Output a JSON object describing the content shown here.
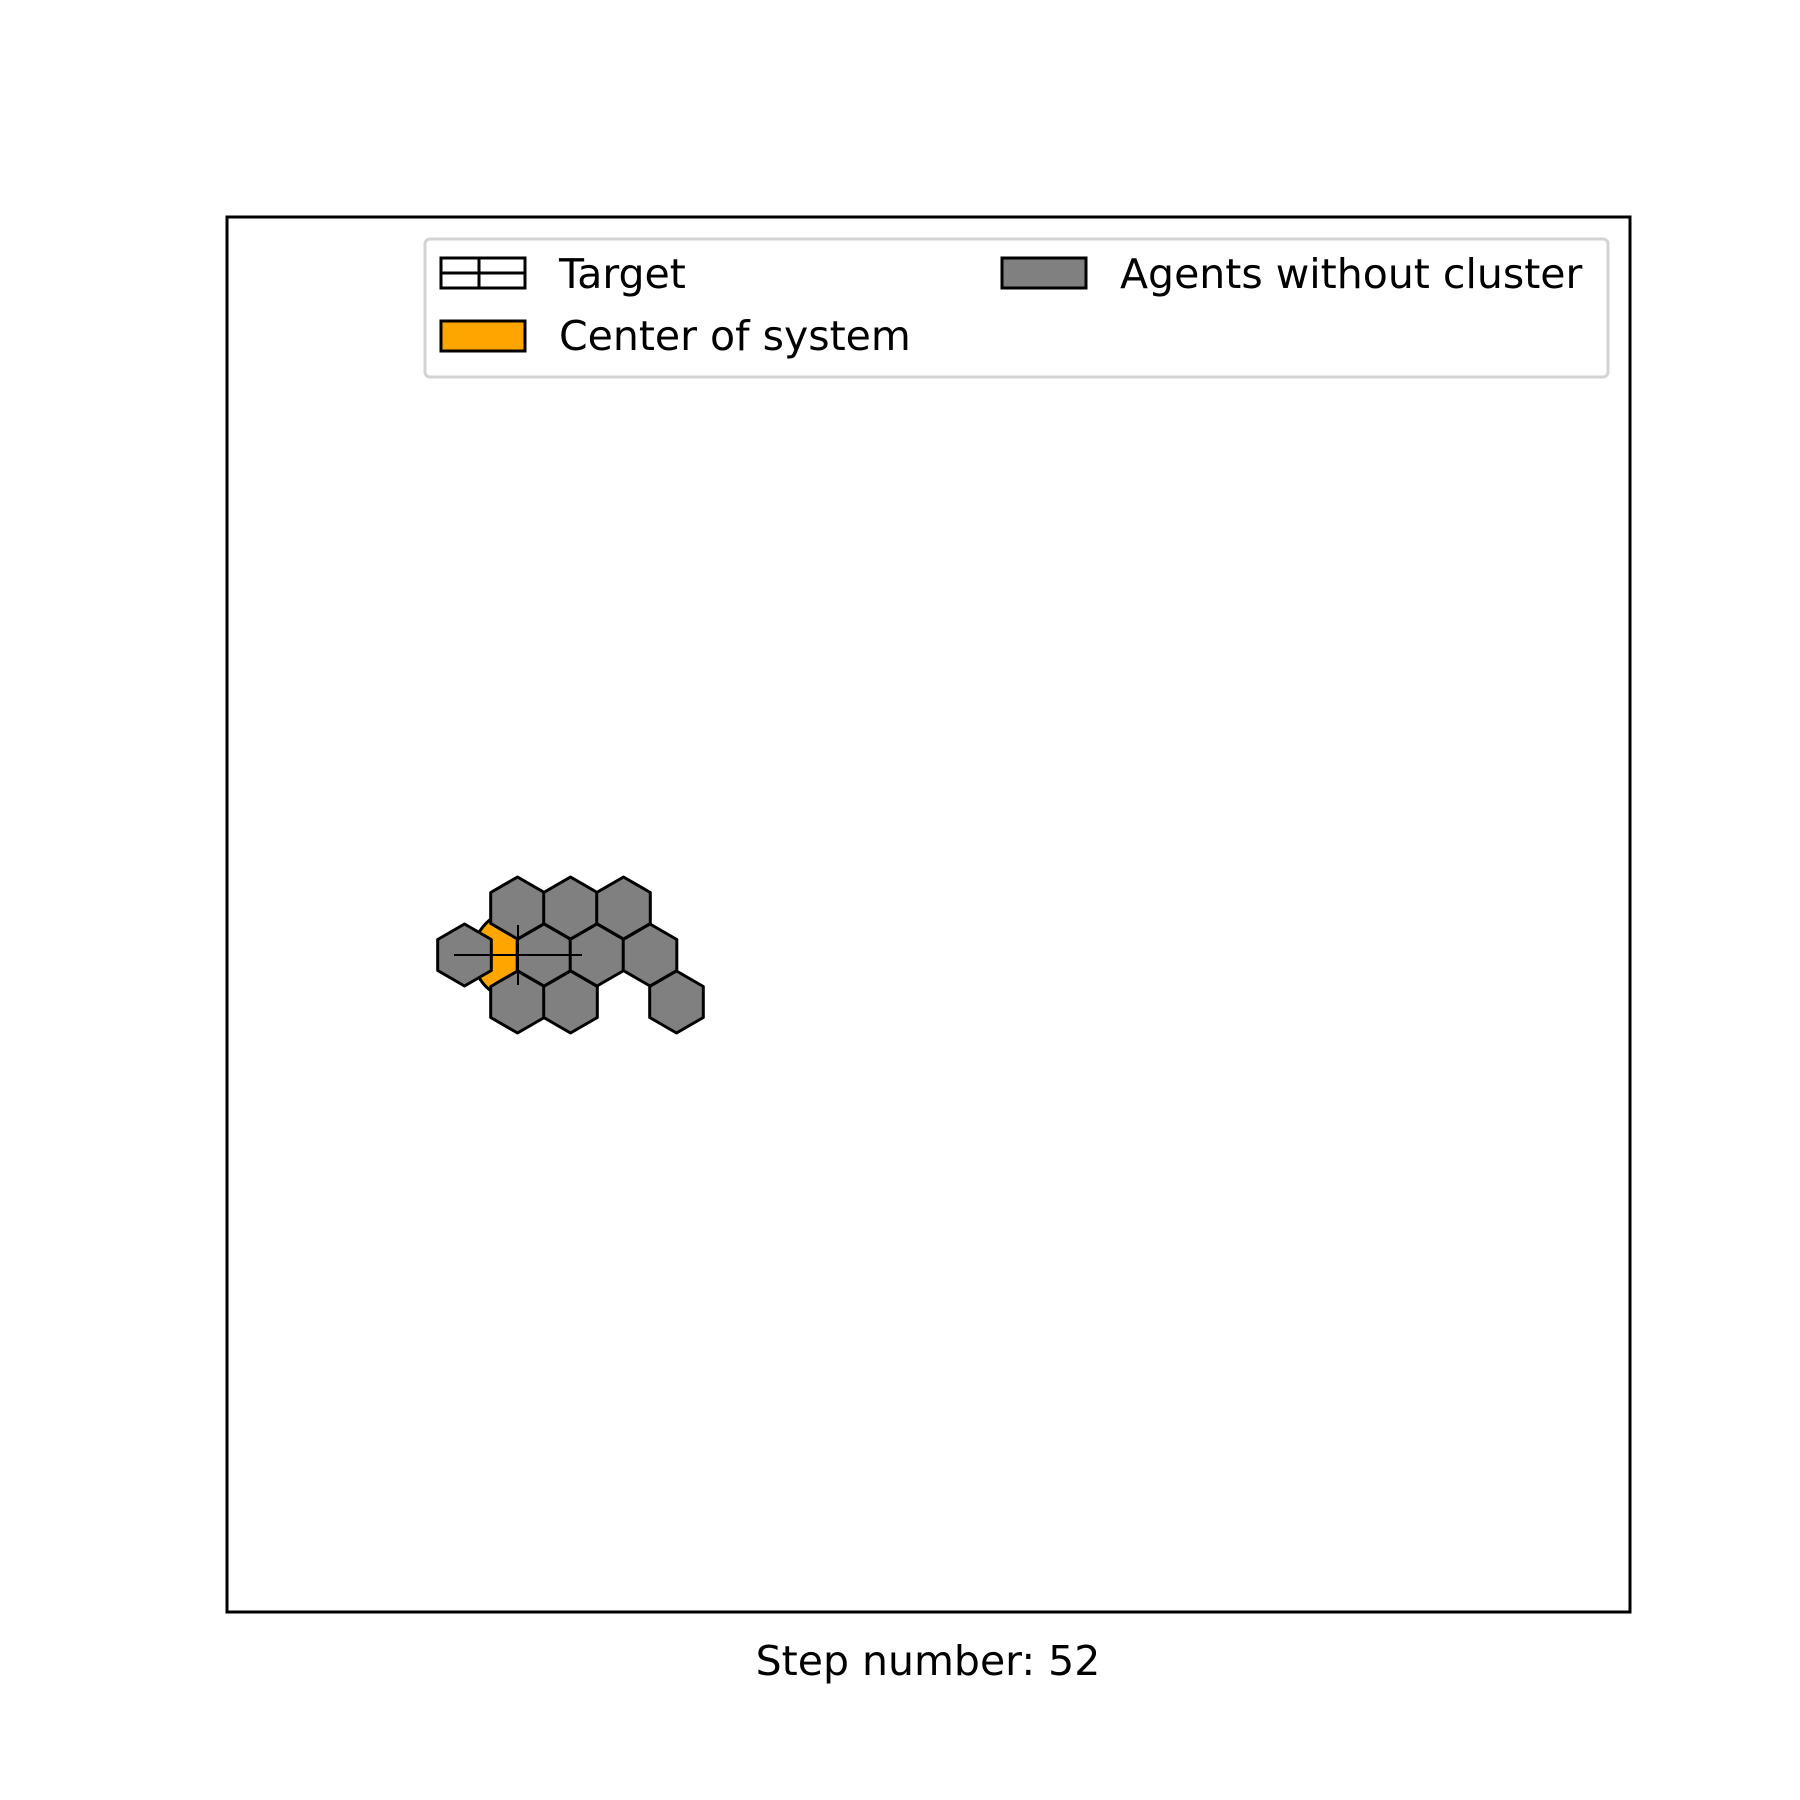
{
  "legend": {
    "target_label": "Target",
    "center_label": "Center of system",
    "agents_label": "Agents without cluster"
  },
  "step": {
    "label": "Step number: 52"
  },
  "colors": {
    "agent_fill": "#808080",
    "center_fill": "#FFA500",
    "edge": "#000000",
    "legend_border": "#d3d3d3"
  },
  "diagram": {
    "agents": [
      {
        "col": -1,
        "row": 0
      },
      {
        "col": 1,
        "row": -1
      },
      {
        "col": 3,
        "row": -1
      },
      {
        "col": 5,
        "row": -1
      },
      {
        "col": 2,
        "row": 0
      },
      {
        "col": 4,
        "row": 0
      },
      {
        "col": 6,
        "row": 0
      },
      {
        "col": 1,
        "row": 1
      },
      {
        "col": 3,
        "row": 1
      },
      {
        "col": 7,
        "row": 1
      }
    ]
  }
}
